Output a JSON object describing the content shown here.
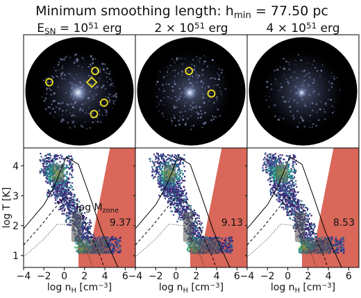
{
  "figure": {
    "title": "Minimum smoothing length: h",
    "title_sub": "min",
    "title_value": " = 77.50 pc"
  },
  "columns": [
    {
      "label_parts": [
        {
          "t": "E"
        },
        {
          "t": "SN",
          "sub": true
        },
        {
          "t": " = 10"
        },
        {
          "t": "51",
          "sup": true
        },
        {
          "t": " erg"
        }
      ],
      "mzone": "9.37",
      "show_mzone_label": true
    },
    {
      "label_parts": [
        {
          "t": "2 × 10"
        },
        {
          "t": "51",
          "sup": true
        },
        {
          "t": " erg"
        }
      ],
      "mzone": "9.13",
      "show_mzone_label": false
    },
    {
      "label_parts": [
        {
          "t": "4 × 10"
        },
        {
          "t": "51",
          "sup": true
        },
        {
          "t": " erg"
        }
      ],
      "mzone": "8.53",
      "show_mzone_label": false
    }
  ],
  "mzone_label": "log M",
  "mzone_label_sub": "zone",
  "colors": {
    "disc_bg": "#000000",
    "region_fill": "#d9675a",
    "box_fill": "#555555",
    "marker": "#f4e31c",
    "panel_border": "#000000"
  },
  "markers": [
    [
      {
        "shape": "circle",
        "x": 0.23,
        "y": 0.42
      },
      {
        "shape": "circle",
        "x": 0.64,
        "y": 0.32
      },
      {
        "shape": "diamond",
        "x": 0.61,
        "y": 0.42
      },
      {
        "shape": "circle",
        "x": 0.72,
        "y": 0.6
      },
      {
        "shape": "circle",
        "x": 0.63,
        "y": 0.7
      }
    ],
    [
      {
        "shape": "circle",
        "x": 0.48,
        "y": 0.32
      },
      {
        "shape": "circle",
        "x": 0.68,
        "y": 0.52
      }
    ],
    []
  ],
  "chart_data": {
    "type": "heatmap",
    "xlabel_parts": [
      {
        "t": "log n"
      },
      {
        "t": "H",
        "sub": true
      },
      {
        "t": " [cm"
      },
      {
        "t": "−3",
        "sup": true
      },
      {
        "t": "]"
      }
    ],
    "ylabel": "log T [K]",
    "xlim": [
      -4,
      7
    ],
    "ylim": [
      0.6,
      4.6
    ],
    "xticks": [
      -4,
      -2,
      0,
      2,
      4,
      6
    ],
    "xtick_labels": [
      "−4",
      "−2",
      "0",
      "2",
      "4",
      "6"
    ],
    "yticks": [
      1,
      2,
      3,
      4
    ],
    "ytick_labels": [
      "1",
      "2",
      "3",
      "4"
    ],
    "selection_boxes": [
      {
        "x": [
          -1.2,
          0.0
        ],
        "y": [
          3.45,
          4.05
        ]
      },
      {
        "x": [
          0.7,
          1.7
        ],
        "y": [
          1.45,
          2.45
        ]
      },
      {
        "x": [
          1.3,
          4.3
        ],
        "y": [
          1.05,
          1.55
        ]
      }
    ],
    "shaded_region": [
      [
        4.5,
        4.6
      ],
      [
        7.0,
        4.6
      ],
      [
        7.0,
        0.6
      ],
      [
        1.4,
        0.6
      ],
      [
        1.4,
        1.3
      ],
      [
        2.6,
        1.3
      ]
    ],
    "jeans_lines": [
      {
        "style": "solid",
        "points": [
          [
            -4,
            1.9
          ],
          [
            -2,
            2.7
          ],
          [
            -1,
            3.3
          ],
          [
            0.2,
            4.3
          ],
          [
            1.4,
            4.05
          ],
          [
            2.5,
            3.0
          ],
          [
            3.7,
            1.8
          ],
          [
            4.9,
            0.9
          ],
          [
            5.3,
            0.6
          ]
        ]
      },
      {
        "style": "dashed",
        "points": [
          [
            -4,
            1.35
          ],
          [
            -2.3,
            2.0
          ],
          [
            -1,
            2.55
          ],
          [
            0,
            2.95
          ],
          [
            1.2,
            2.75
          ],
          [
            2.2,
            2.0
          ],
          [
            3.3,
            1.15
          ],
          [
            3.7,
            0.85
          ],
          [
            3.9,
            0.6
          ]
        ]
      },
      {
        "style": "dotted",
        "points": [
          [
            -4,
            0.95
          ],
          [
            -2,
            1.55
          ],
          [
            -0.7,
            2.05
          ],
          [
            0.8,
            2.0
          ],
          [
            2.0,
            1.25
          ],
          [
            2.5,
            0.9
          ],
          [
            2.8,
            0.6
          ]
        ]
      }
    ]
  }
}
